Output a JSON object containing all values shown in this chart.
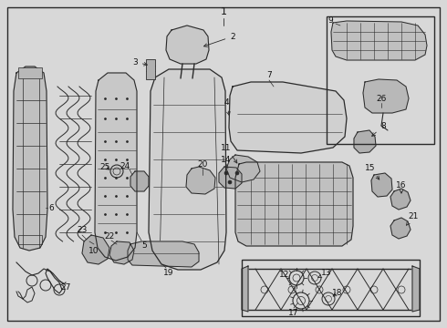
{
  "bg_color": "#d8d8d8",
  "line_color": "#2a2a2a",
  "text_color": "#111111",
  "fig_width": 4.9,
  "fig_height": 3.6,
  "dpi": 100
}
